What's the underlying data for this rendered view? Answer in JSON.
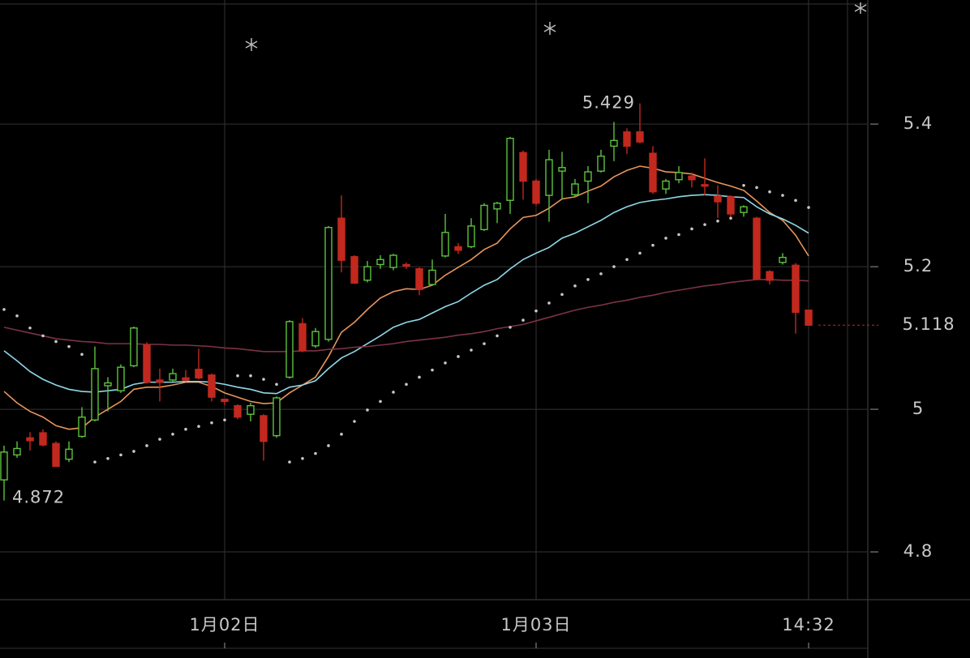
{
  "chart_data": {
    "type": "candlestick",
    "categories": [
      null,
      null,
      null,
      null,
      null,
      null,
      null,
      null,
      null,
      null,
      null,
      null,
      null,
      null,
      null,
      null,
      null,
      "1月02日",
      null,
      null,
      null,
      null,
      null,
      null,
      null,
      null,
      null,
      null,
      null,
      null,
      null,
      null,
      null,
      null,
      null,
      null,
      null,
      null,
      null,
      null,
      null,
      "1月03日",
      null,
      null,
      null,
      null,
      null,
      null,
      null,
      null,
      null,
      null,
      null,
      null,
      null,
      null,
      null,
      null,
      null,
      null,
      null,
      null,
      "14:32"
    ],
    "open": [
      4.901,
      4.936,
      4.96,
      4.967,
      4.952,
      4.93,
      4.962,
      4.985,
      5.033,
      5.026,
      5.061,
      5.09,
      5.041,
      5.041,
      5.044,
      5.056,
      5.048,
      5.014,
      5.005,
      4.993,
      4.991,
      4.963,
      5.045,
      5.12,
      5.089,
      5.098,
      5.268,
      5.214,
      5.181,
      5.203,
      5.199,
      5.203,
      5.197,
      5.175,
      5.215,
      5.228,
      5.228,
      5.252,
      5.281,
      5.293,
      5.36,
      5.32,
      5.3,
      5.334,
      5.301,
      5.32,
      5.334,
      5.369,
      5.389,
      5.389,
      5.359,
      5.309,
      5.322,
      5.327,
      5.315,
      5.299,
      5.298,
      5.276,
      5.268,
      5.193,
      5.206,
      5.202,
      5.139
    ],
    "high": [
      4.949,
      4.955,
      4.968,
      4.972,
      4.955,
      4.955,
      5.003,
      5.088,
      5.045,
      5.063,
      5.116,
      5.094,
      5.057,
      5.057,
      5.055,
      5.085,
      5.05,
      5.014,
      5.007,
      5.009,
      4.993,
      5.018,
      5.125,
      5.128,
      5.114,
      5.257,
      5.3,
      5.216,
      5.208,
      5.216,
      5.218,
      5.206,
      5.199,
      5.21,
      5.274,
      5.233,
      5.268,
      5.289,
      5.291,
      5.382,
      5.363,
      5.323,
      5.364,
      5.361,
      5.323,
      5.341,
      5.364,
      5.403,
      5.394,
      5.429,
      5.369,
      5.323,
      5.341,
      5.332,
      5.352,
      5.314,
      5.3,
      5.286,
      5.27,
      5.195,
      5.219,
      5.205,
      5.139
    ],
    "low": [
      4.872,
      4.932,
      4.942,
      4.948,
      4.919,
      4.926,
      4.96,
      4.983,
      4.997,
      5.023,
      5.059,
      5.036,
      5.011,
      5.039,
      5.039,
      5.042,
      5.011,
      5.006,
      4.986,
      4.983,
      4.928,
      4.96,
      5.043,
      5.08,
      5.086,
      5.095,
      5.192,
      5.176,
      5.178,
      5.197,
      5.195,
      5.197,
      5.16,
      5.173,
      5.213,
      5.218,
      5.226,
      5.25,
      5.261,
      5.274,
      5.294,
      5.286,
      5.263,
      5.294,
      5.298,
      5.289,
      5.332,
      5.348,
      5.358,
      5.373,
      5.302,
      5.302,
      5.317,
      5.311,
      5.3,
      5.268,
      5.27,
      5.27,
      5.181,
      5.175,
      5.203,
      5.106,
      5.118
    ],
    "close": [
      4.94,
      4.945,
      4.956,
      4.95,
      4.92,
      4.944,
      4.989,
      5.057,
      5.037,
      5.059,
      5.114,
      5.038,
      5.038,
      5.05,
      5.041,
      5.044,
      5.017,
      5.011,
      4.989,
      5.005,
      4.955,
      5.016,
      5.123,
      5.082,
      5.109,
      5.255,
      5.209,
      5.177,
      5.2,
      5.21,
      5.216,
      5.201,
      5.168,
      5.195,
      5.248,
      5.223,
      5.257,
      5.286,
      5.289,
      5.38,
      5.32,
      5.289,
      5.35,
      5.339,
      5.316,
      5.333,
      5.355,
      5.377,
      5.369,
      5.375,
      5.305,
      5.32,
      5.332,
      5.322,
      5.313,
      5.291,
      5.274,
      5.284,
      5.183,
      5.181,
      5.213,
      5.136,
      5.118
    ],
    "up_color": "#5cc23d",
    "down_color": "#c2281e",
    "lines": [
      {
        "color": "#e8955a",
        "values": [
          5.025,
          5.009,
          4.997,
          4.989,
          4.977,
          4.972,
          4.974,
          4.989,
          5.0,
          5.011,
          5.028,
          5.031,
          5.031,
          5.034,
          5.038,
          5.038,
          5.032,
          5.023,
          5.017,
          5.011,
          5.008,
          5.009,
          5.023,
          5.034,
          5.045,
          5.074,
          5.108,
          5.122,
          5.14,
          5.156,
          5.165,
          5.169,
          5.168,
          5.174,
          5.188,
          5.199,
          5.21,
          5.224,
          5.233,
          5.253,
          5.269,
          5.272,
          5.282,
          5.295,
          5.298,
          5.306,
          5.313,
          5.326,
          5.335,
          5.341,
          5.338,
          5.333,
          5.332,
          5.33,
          5.324,
          5.318,
          5.313,
          5.307,
          5.292,
          5.276,
          5.265,
          5.244,
          5.215
        ]
      },
      {
        "color": "#8fd8e8",
        "values": [
          5.082,
          5.068,
          5.053,
          5.042,
          5.034,
          5.028,
          5.025,
          5.024,
          5.026,
          5.028,
          5.035,
          5.038,
          5.038,
          5.038,
          5.039,
          5.039,
          5.038,
          5.035,
          5.031,
          5.028,
          5.023,
          5.022,
          5.031,
          5.034,
          5.04,
          5.057,
          5.072,
          5.081,
          5.092,
          5.103,
          5.115,
          5.122,
          5.126,
          5.135,
          5.144,
          5.151,
          5.163,
          5.174,
          5.182,
          5.197,
          5.21,
          5.219,
          5.227,
          5.24,
          5.247,
          5.256,
          5.265,
          5.276,
          5.284,
          5.29,
          5.293,
          5.295,
          5.298,
          5.3,
          5.301,
          5.3,
          5.298,
          5.297,
          5.284,
          5.274,
          5.267,
          5.258,
          5.247
        ]
      },
      {
        "color": "#7c3344",
        "values": [
          5.115,
          5.111,
          5.107,
          5.103,
          5.099,
          5.097,
          5.095,
          5.094,
          5.092,
          5.092,
          5.092,
          5.091,
          5.091,
          5.09,
          5.09,
          5.089,
          5.088,
          5.086,
          5.085,
          5.083,
          5.081,
          5.081,
          5.081,
          5.082,
          5.082,
          5.084,
          5.085,
          5.087,
          5.088,
          5.09,
          5.092,
          5.095,
          5.097,
          5.099,
          5.101,
          5.104,
          5.106,
          5.109,
          5.113,
          5.116,
          5.119,
          5.124,
          5.129,
          5.134,
          5.139,
          5.143,
          5.146,
          5.15,
          5.153,
          5.157,
          5.16,
          5.164,
          5.167,
          5.17,
          5.173,
          5.175,
          5.178,
          5.18,
          5.182,
          5.182,
          5.181,
          5.181,
          5.18
        ]
      },
      {
        "color": "#c8c8c8",
        "style": "dotted",
        "values": [
          5.14,
          5.131,
          5.114,
          5.103,
          5.095,
          5.088,
          5.077,
          4.926,
          4.931,
          4.936,
          4.941,
          4.949,
          4.958,
          4.965,
          4.972,
          4.976,
          4.981,
          4.985,
          5.047,
          5.047,
          5.042,
          5.035,
          4.926,
          4.931,
          4.938,
          4.949,
          4.965,
          4.983,
          4.999,
          5.011,
          5.024,
          5.035,
          5.045,
          5.055,
          5.065,
          5.074,
          5.083,
          5.092,
          5.103,
          5.115,
          5.125,
          5.138,
          5.149,
          5.161,
          5.173,
          5.182,
          5.19,
          5.2,
          5.21,
          5.219,
          5.23,
          5.24,
          5.245,
          5.253,
          5.259,
          5.264,
          5.268,
          5.314,
          5.311,
          5.305,
          5.3,
          5.293,
          5.283
        ]
      }
    ],
    "annotations": [
      {
        "value": 5.429,
        "label": "5.429",
        "index": 49,
        "side": "left"
      },
      {
        "value": 4.872,
        "label": "4.872",
        "index": 0,
        "side": "right"
      }
    ],
    "last_price": {
      "value": 5.118,
      "label": "5.118"
    },
    "ylim": [
      4.733,
      5.574
    ],
    "yticks": [
      5.4,
      5.2,
      5,
      4.8
    ],
    "grid": true
  }
}
